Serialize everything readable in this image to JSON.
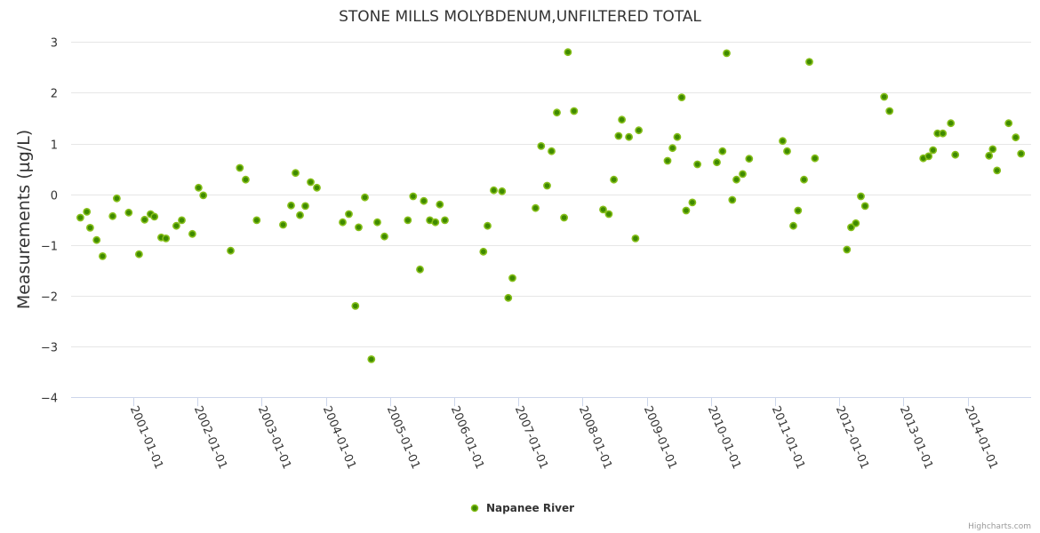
{
  "chart_data": {
    "type": "scatter",
    "title": "STONE MILLS MOLYBDENUM,UNFILTERED TOTAL",
    "xlabel": "",
    "ylabel": "Measurements (µg/L)",
    "x_units": "decimal year",
    "xlim": [
      2000.03,
      2014.99
    ],
    "ylim": [
      -4,
      3
    ],
    "yticks": [
      3,
      2,
      1,
      0,
      -1,
      -2,
      -3,
      -4
    ],
    "yticklabels": [
      "3",
      "2",
      "1",
      "0",
      "−1",
      "−2",
      "−3",
      "−4"
    ],
    "xticks": [
      2001,
      2002,
      2003,
      2004,
      2005,
      2006,
      2007,
      2008,
      2009,
      2010,
      2011,
      2012,
      2013,
      2014
    ],
    "xticklabels": [
      "2001-01-01",
      "2002-01-01",
      "2003-01-01",
      "2004-01-01",
      "2005-01-01",
      "2006-01-01",
      "2007-01-01",
      "2008-01-01",
      "2009-01-01",
      "2010-01-01",
      "2011-01-01",
      "2012-01-01",
      "2013-01-01",
      "2014-01-01"
    ],
    "grid": true,
    "legend_position": "bottom-center",
    "series": [
      {
        "name": "Napanee River",
        "color": "#5c9d05",
        "points": [
          [
            2000.174,
            -0.46
          ],
          [
            2000.275,
            -0.345
          ],
          [
            2000.326,
            -0.66
          ],
          [
            2000.428,
            -0.9
          ],
          [
            2000.52,
            -1.22
          ],
          [
            2000.677,
            -0.43
          ],
          [
            2000.742,
            -0.08
          ],
          [
            2000.927,
            -0.36
          ],
          [
            2001.088,
            -1.18
          ],
          [
            2001.176,
            -0.5
          ],
          [
            2001.268,
            -0.39
          ],
          [
            2001.328,
            -0.44
          ],
          [
            2001.435,
            -0.85
          ],
          [
            2001.508,
            -0.87
          ],
          [
            2001.67,
            -0.62
          ],
          [
            2001.754,
            -0.51
          ],
          [
            2001.92,
            -0.78
          ],
          [
            2002.017,
            0.13
          ],
          [
            2002.09,
            -0.02
          ],
          [
            2002.516,
            -1.11
          ],
          [
            2002.659,
            0.52
          ],
          [
            2002.751,
            0.29
          ],
          [
            2002.922,
            -0.51
          ],
          [
            2003.333,
            -0.6
          ],
          [
            2003.458,
            -0.22
          ],
          [
            2003.527,
            0.42
          ],
          [
            2003.597,
            -0.41
          ],
          [
            2003.68,
            -0.23
          ],
          [
            2003.763,
            0.24
          ],
          [
            2003.86,
            0.13
          ],
          [
            2004.262,
            -0.55
          ],
          [
            2004.359,
            -0.39
          ],
          [
            2004.46,
            -2.2
          ],
          [
            2004.511,
            -0.65
          ],
          [
            2004.608,
            -0.06
          ],
          [
            2004.709,
            -3.25
          ],
          [
            2004.802,
            -0.55
          ],
          [
            2004.913,
            -0.83
          ],
          [
            2005.277,
            -0.51
          ],
          [
            2005.36,
            -0.04
          ],
          [
            2005.467,
            -1.48
          ],
          [
            2005.527,
            -0.13
          ],
          [
            2005.62,
            -0.51
          ],
          [
            2005.707,
            -0.55
          ],
          [
            2005.776,
            -0.2
          ],
          [
            2005.855,
            -0.51
          ],
          [
            2006.455,
            -1.13
          ],
          [
            2006.52,
            -0.62
          ],
          [
            2006.617,
            0.08
          ],
          [
            2006.746,
            0.06
          ],
          [
            2006.843,
            -2.04
          ],
          [
            2006.908,
            -1.65
          ],
          [
            2007.268,
            -0.27
          ],
          [
            2007.355,
            0.95
          ],
          [
            2007.448,
            0.17
          ],
          [
            2007.517,
            0.85
          ],
          [
            2007.6,
            1.61
          ],
          [
            2007.712,
            -0.46
          ],
          [
            2007.772,
            2.8
          ],
          [
            2007.868,
            1.64
          ],
          [
            2008.321,
            -0.3
          ],
          [
            2008.409,
            -0.39
          ],
          [
            2008.488,
            0.29
          ],
          [
            2008.561,
            1.15
          ],
          [
            2008.613,
            1.47
          ],
          [
            2008.724,
            1.13
          ],
          [
            2008.825,
            -0.87
          ],
          [
            2008.876,
            1.26
          ],
          [
            2009.324,
            0.66
          ],
          [
            2009.402,
            0.91
          ],
          [
            2009.476,
            1.13
          ],
          [
            2009.545,
            1.91
          ],
          [
            2009.614,
            -0.32
          ],
          [
            2009.711,
            -0.16
          ],
          [
            2009.79,
            0.59
          ],
          [
            2010.093,
            0.63
          ],
          [
            2010.181,
            0.85
          ],
          [
            2010.246,
            2.78
          ],
          [
            2010.333,
            -0.11
          ],
          [
            2010.398,
            0.29
          ],
          [
            2010.495,
            0.4
          ],
          [
            2010.596,
            0.7
          ],
          [
            2011.118,
            1.05
          ],
          [
            2011.188,
            0.85
          ],
          [
            2011.285,
            -0.62
          ],
          [
            2011.358,
            -0.32
          ],
          [
            2011.451,
            0.29
          ],
          [
            2011.534,
            2.61
          ],
          [
            2011.621,
            0.71
          ],
          [
            2012.12,
            -1.09
          ],
          [
            2012.185,
            -0.65
          ],
          [
            2012.259,
            -0.57
          ],
          [
            2012.338,
            -0.04
          ],
          [
            2012.402,
            -0.23
          ],
          [
            2012.7,
            1.92
          ],
          [
            2012.783,
            1.64
          ],
          [
            2013.31,
            0.71
          ],
          [
            2013.393,
            0.75
          ],
          [
            2013.462,
            0.87
          ],
          [
            2013.531,
            1.2
          ],
          [
            2013.614,
            1.2
          ],
          [
            2013.739,
            1.4
          ],
          [
            2013.809,
            0.78
          ],
          [
            2014.335,
            0.76
          ],
          [
            2014.391,
            0.89
          ],
          [
            2014.46,
            0.47
          ],
          [
            2014.64,
            1.4
          ],
          [
            2014.751,
            1.12
          ],
          [
            2014.834,
            0.8
          ]
        ]
      }
    ],
    "credits": "Highcharts.com"
  },
  "colors": {
    "grid": "#e6e6e6",
    "axis": "#ccd6eb",
    "marker_fill": "#3f8a00",
    "marker_ring": "#86bf1a"
  }
}
